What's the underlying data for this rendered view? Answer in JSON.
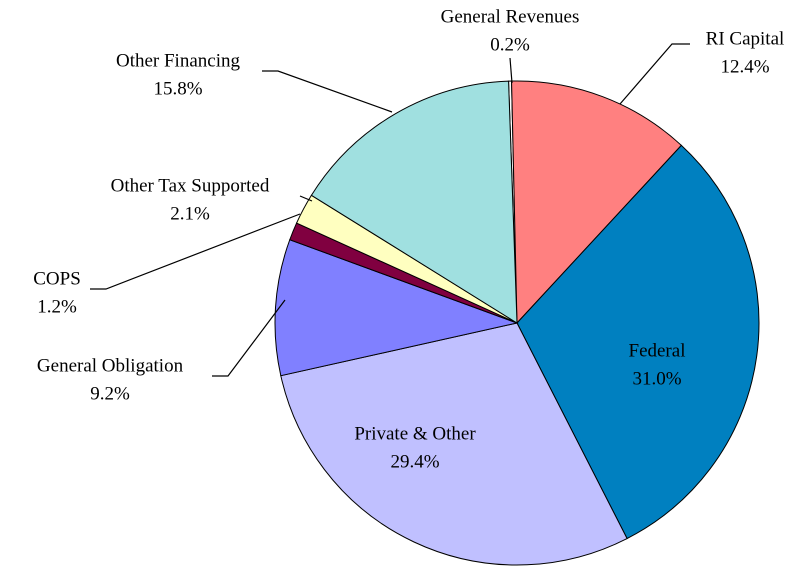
{
  "chart_data": {
    "type": "pie",
    "categories": [
      "General Revenues",
      "RI Capital",
      "Federal",
      "Private & Other",
      "General Obligation",
      "COPS",
      "Other Tax Supported",
      "Other Financing"
    ],
    "values": [
      0.2,
      12.4,
      31.0,
      29.4,
      9.2,
      1.2,
      2.1,
      15.8
    ],
    "value_labels": [
      "0.2%",
      "12.4%",
      "31.0%",
      "29.4%",
      "9.2%",
      "1.2%",
      "2.1%",
      "15.8%"
    ],
    "colors": [
      "#ffffff",
      "#ff8080",
      "#0080c0",
      "#c0c0ff",
      "#8080ff",
      "#800040",
      "#ffffc0",
      "#a0e0e0"
    ]
  }
}
